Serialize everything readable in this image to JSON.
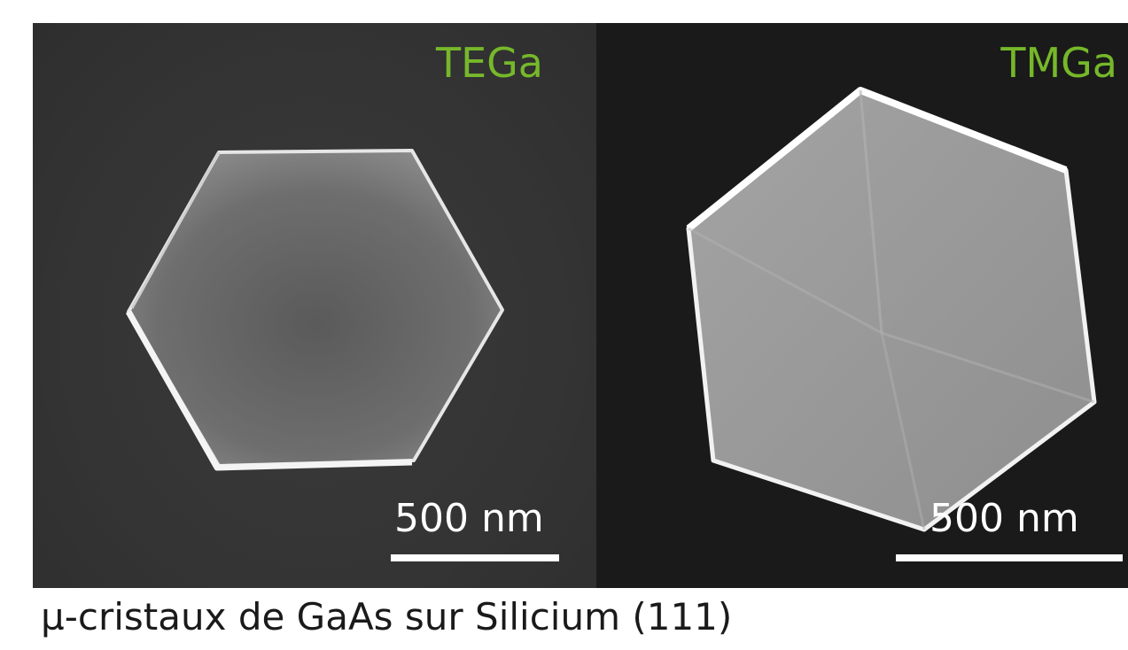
{
  "panels": [
    {
      "label": "TEGa",
      "scale_bar_text": "500 nm"
    },
    {
      "label": "TMGa",
      "scale_bar_text": "500 nm"
    }
  ],
  "caption": "µ-cristaux de GaAs sur Silicium (111)",
  "colors": {
    "label_green": "#76b82a",
    "left_background": "#363636",
    "right_background": "#1a1a1a",
    "scale_bar": "#ffffff"
  }
}
